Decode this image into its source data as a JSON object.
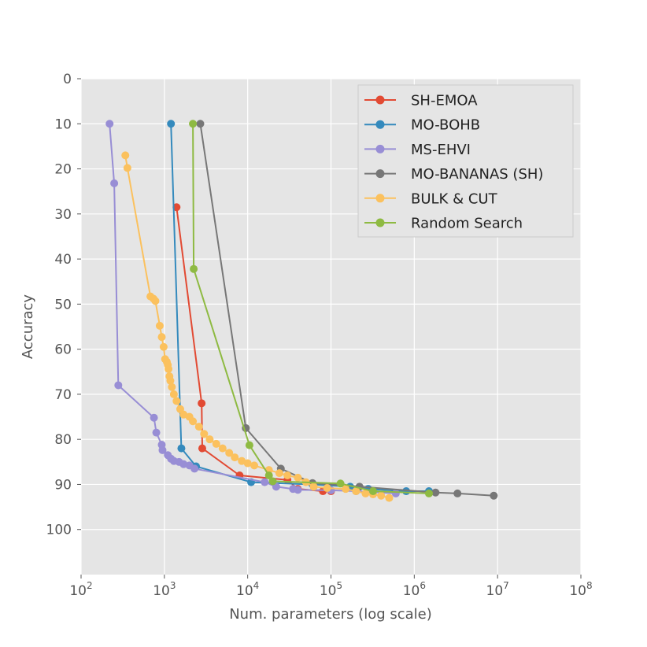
{
  "chart_data": {
    "type": "line",
    "title": "",
    "xlabel": "Num. parameters (log scale)",
    "ylabel": "Accuracy",
    "x_scale": "log",
    "xlim": [
      100,
      100000000
    ],
    "ylim": [
      110,
      0
    ],
    "y_inverted": true,
    "grid": true,
    "legend_position": "top-right",
    "x_ticks": [
      {
        "base": "10",
        "exp": "2",
        "value": 100
      },
      {
        "base": "10",
        "exp": "3",
        "value": 1000
      },
      {
        "base": "10",
        "exp": "4",
        "value": 10000
      },
      {
        "base": "10",
        "exp": "5",
        "value": 100000
      },
      {
        "base": "10",
        "exp": "6",
        "value": 1000000
      },
      {
        "base": "10",
        "exp": "7",
        "value": 10000000
      },
      {
        "base": "10",
        "exp": "8",
        "value": 100000000
      }
    ],
    "y_ticks": [
      "0",
      "10",
      "20",
      "30",
      "40",
      "50",
      "60",
      "70",
      "80",
      "90",
      "100"
    ],
    "series": [
      {
        "name": "SH-EMOA",
        "color": "#e24a33",
        "points": [
          [
            1400,
            28.5
          ],
          [
            2800,
            72
          ],
          [
            2850,
            82
          ],
          [
            8000,
            88
          ],
          [
            30000,
            89
          ],
          [
            40000,
            91
          ],
          [
            80000,
            91.5
          ],
          [
            100000,
            91.5
          ]
        ]
      },
      {
        "name": "MO-BOHB",
        "color": "#348abd",
        "points": [
          [
            1200,
            10
          ],
          [
            1600,
            82
          ],
          [
            2400,
            86
          ],
          [
            11000,
            89.5
          ],
          [
            60000,
            90
          ],
          [
            170000,
            90.5
          ],
          [
            280000,
            91
          ],
          [
            800000,
            91.5
          ],
          [
            1500000,
            91.5
          ]
        ]
      },
      {
        "name": "MS-EHVI",
        "color": "#988ed5",
        "points": [
          [
            220,
            10
          ],
          [
            250,
            23.2
          ],
          [
            280,
            68
          ],
          [
            750,
            75.2
          ],
          [
            800,
            78.5
          ],
          [
            930,
            81.2
          ],
          [
            950,
            82.4
          ],
          [
            1100,
            83.5
          ],
          [
            1200,
            84.3
          ],
          [
            1300,
            84.8
          ],
          [
            1500,
            85
          ],
          [
            1700,
            85.5
          ],
          [
            2000,
            85.8
          ],
          [
            2300,
            86.5
          ],
          [
            16000,
            89.5
          ],
          [
            22000,
            90.5
          ],
          [
            35000,
            91
          ],
          [
            40000,
            91.2
          ],
          [
            100000,
            91.3
          ],
          [
            200000,
            91.5
          ],
          [
            600000,
            92
          ]
        ]
      },
      {
        "name": "MO-BANANAS (SH)",
        "color": "#777777",
        "points": [
          [
            2700,
            10
          ],
          [
            9500,
            77.5
          ],
          [
            25000,
            86.5
          ],
          [
            60000,
            89.7
          ],
          [
            220000,
            90.5
          ],
          [
            1800000,
            91.8
          ],
          [
            3300000,
            92
          ],
          [
            9000000,
            92.5
          ]
        ]
      },
      {
        "name": "BULK & CUT",
        "color": "#fbc15e",
        "points": [
          [
            340,
            17
          ],
          [
            360,
            19.8
          ],
          [
            680,
            48.3
          ],
          [
            740,
            48.8
          ],
          [
            780,
            49.3
          ],
          [
            880,
            54.8
          ],
          [
            930,
            57.3
          ],
          [
            980,
            59.5
          ],
          [
            1020,
            62.2
          ],
          [
            1070,
            62.8
          ],
          [
            1100,
            63.5
          ],
          [
            1120,
            64.4
          ],
          [
            1150,
            66
          ],
          [
            1180,
            67
          ],
          [
            1230,
            68.4
          ],
          [
            1300,
            70
          ],
          [
            1400,
            71.5
          ],
          [
            1550,
            73.3
          ],
          [
            1700,
            74.5
          ],
          [
            2000,
            75
          ],
          [
            2200,
            76
          ],
          [
            2600,
            77.2
          ],
          [
            3000,
            78.8
          ],
          [
            3500,
            80
          ],
          [
            4200,
            81
          ],
          [
            5000,
            82
          ],
          [
            6000,
            83
          ],
          [
            7000,
            84
          ],
          [
            8500,
            84.8
          ],
          [
            10000,
            85.3
          ],
          [
            12000,
            85.8
          ],
          [
            18000,
            86.8
          ],
          [
            24000,
            87.5
          ],
          [
            30000,
            88
          ],
          [
            40000,
            88.5
          ],
          [
            50000,
            89.5
          ],
          [
            62000,
            90.5
          ],
          [
            90000,
            90.8
          ],
          [
            150000,
            91
          ],
          [
            200000,
            91.5
          ],
          [
            260000,
            92
          ],
          [
            320000,
            92.2
          ],
          [
            400000,
            92.5
          ],
          [
            500000,
            93
          ]
        ]
      },
      {
        "name": "Random Search",
        "color": "#8eba42",
        "points": [
          [
            2200,
            10
          ],
          [
            2250,
            42.2
          ],
          [
            10500,
            81.3
          ],
          [
            18000,
            88
          ],
          [
            20000,
            89.3
          ],
          [
            130000,
            89.8
          ],
          [
            320000,
            91.5
          ],
          [
            1500000,
            92
          ]
        ]
      }
    ]
  }
}
